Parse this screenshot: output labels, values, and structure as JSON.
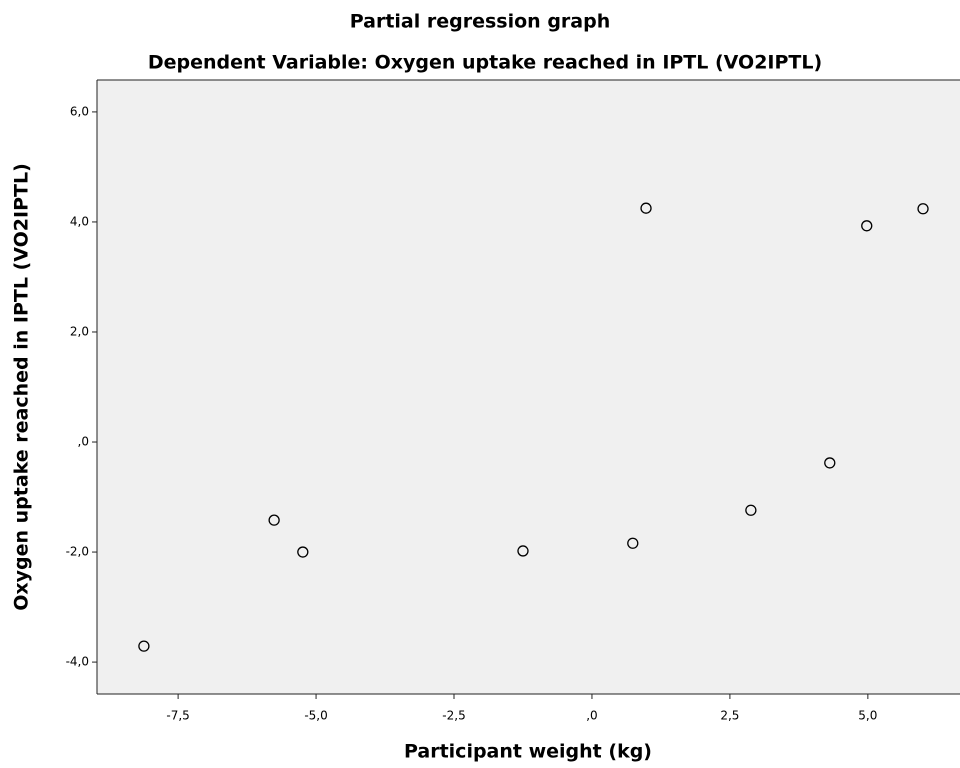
{
  "chart_data": {
    "type": "scatter",
    "title": "Partial regression graph",
    "subtitle": "Dependent Variable: Oxygen uptake reached in IPTL (VO2IPTL)",
    "x_label": "Participant weight (kg)",
    "y_label": "Oxygen uptake reached in IPTL (VO2IPTL)",
    "x": [
      -8.12,
      -5.76,
      -5.24,
      -1.25,
      0.74,
      0.98,
      2.88,
      4.31,
      4.98,
      6.0
    ],
    "values": [
      -3.71,
      -1.42,
      -2.0,
      -1.98,
      -1.84,
      4.25,
      -1.24,
      -0.38,
      3.93,
      4.24
    ],
    "color": "#000000",
    "xlim": [
      -8.97,
      6.67
    ],
    "ylim": [
      -4.58,
      6.58
    ],
    "xticks": [
      {
        "value": -7.5,
        "label": "-7,5"
      },
      {
        "value": -5,
        "label": "-5,0"
      },
      {
        "value": -2.5,
        "label": "-2,5"
      },
      {
        "value": 0,
        "label": ",0"
      },
      {
        "value": 2.5,
        "label": "2,5"
      },
      {
        "value": 5,
        "label": "5,0"
      }
    ],
    "yticks": [
      {
        "value": -4,
        "label": "-4,0"
      },
      {
        "value": -2,
        "label": "-2,0"
      },
      {
        "value": 0,
        "label": ",0"
      },
      {
        "value": 2,
        "label": "2,0"
      },
      {
        "value": 4,
        "label": "4,0"
      },
      {
        "value": 6,
        "label": "6,0"
      }
    ],
    "grid": false
  }
}
